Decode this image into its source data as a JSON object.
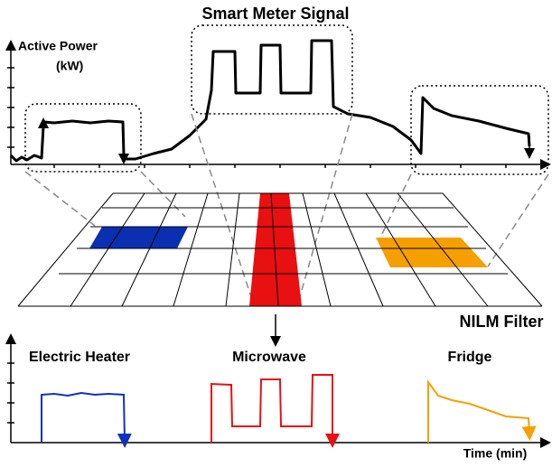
{
  "title": "Smart Meter Signal",
  "y_axis_label": [
    "Active Power",
    "(kW)"
  ],
  "filter_label": "NILM Filter",
  "appliances": [
    "Electric Heater",
    "Microwave",
    "Fridge"
  ],
  "x_axis_label": "Time (min)"
}
